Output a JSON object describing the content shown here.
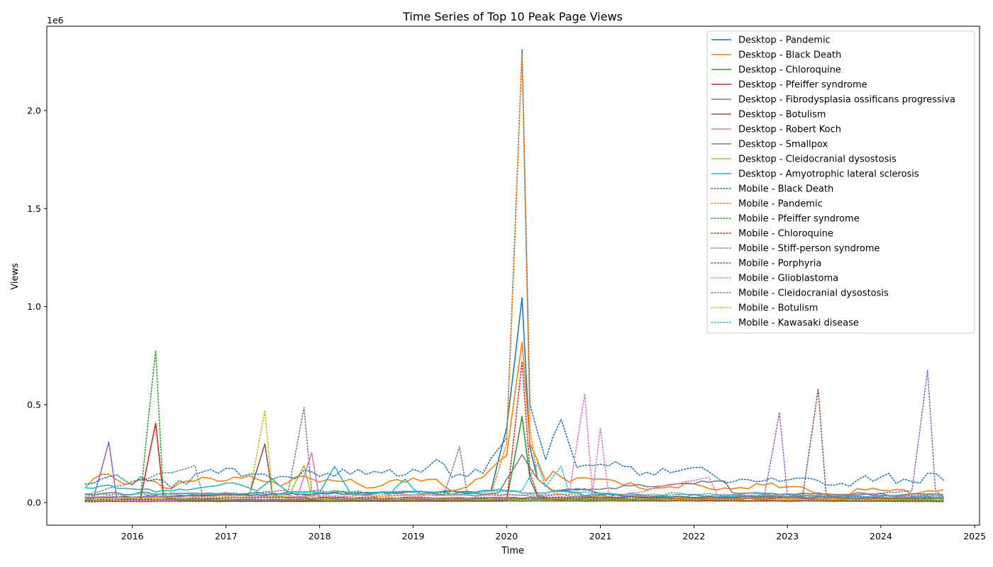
{
  "chart_data": {
    "type": "line",
    "title": "Time Series of Top 10 Peak Page Views",
    "xlabel": "Time",
    "ylabel": "Views",
    "y_offset_label": "1e6",
    "xlim": [
      "2015-02-01",
      "2025-01-20"
    ],
    "ylim": [
      -115000,
      2430000
    ],
    "x_ticks": [
      "2016",
      "2017",
      "2018",
      "2019",
      "2020",
      "2021",
      "2022",
      "2023",
      "2024",
      "2025"
    ],
    "y_ticks": [
      {
        "value": 0,
        "label": "0.0"
      },
      {
        "value": 500000,
        "label": "0.5"
      },
      {
        "value": 1000000,
        "label": "1.0"
      },
      {
        "value": 1500000,
        "label": "1.5"
      },
      {
        "value": 2000000,
        "label": "2.0"
      }
    ],
    "grid": false,
    "legend_position": "top-right",
    "series": [
      {
        "name": "Desktop - Pandemic",
        "color": "#1f77b4",
        "style": "solid",
        "base": 30000,
        "points": [
          [
            "2015-07-01",
            25000
          ],
          [
            "2019-11-01",
            60000
          ],
          [
            "2020-01-01",
            380000
          ],
          [
            "2020-03-01",
            1045000
          ],
          [
            "2020-04-01",
            280000
          ],
          [
            "2020-05-01",
            120000
          ],
          [
            "2020-07-01",
            60000
          ],
          [
            "2020-11-01",
            70000
          ],
          [
            "2021-01-01",
            45000
          ],
          [
            "2021-06-01",
            30000
          ],
          [
            "2024-09-01",
            25000
          ]
        ]
      },
      {
        "name": "Desktop - Black Death",
        "color": "#ff7f0e",
        "style": "solid",
        "base": 90000,
        "points": [
          [
            "2015-07-01",
            75000
          ],
          [
            "2015-08-01",
            120000
          ],
          [
            "2015-10-01",
            145000
          ],
          [
            "2015-12-01",
            95000
          ],
          [
            "2016-02-01",
            120000
          ],
          [
            "2016-06-01",
            70000
          ],
          [
            "2016-09-01",
            110000
          ],
          [
            "2017-02-01",
            130000
          ],
          [
            "2017-05-01",
            120000
          ],
          [
            "2017-08-01",
            85000
          ],
          [
            "2017-11-01",
            135000
          ],
          [
            "2018-01-01",
            105000
          ],
          [
            "2018-05-01",
            120000
          ],
          [
            "2018-07-01",
            75000
          ],
          [
            "2018-10-01",
            110000
          ],
          [
            "2019-04-01",
            120000
          ],
          [
            "2019-06-01",
            60000
          ],
          [
            "2019-10-01",
            130000
          ],
          [
            "2019-12-01",
            210000
          ],
          [
            "2020-01-01",
            240000
          ],
          [
            "2020-03-01",
            820000
          ],
          [
            "2020-04-01",
            300000
          ],
          [
            "2020-06-01",
            110000
          ],
          [
            "2020-07-01",
            160000
          ],
          [
            "2020-09-01",
            105000
          ],
          [
            "2020-12-01",
            120000
          ],
          [
            "2021-03-01",
            110000
          ],
          [
            "2021-06-01",
            75000
          ],
          [
            "2022-01-01",
            95000
          ],
          [
            "2022-04-01",
            65000
          ],
          [
            "2022-10-01",
            90000
          ],
          [
            "2023-03-01",
            80000
          ],
          [
            "2023-06-01",
            45000
          ],
          [
            "2023-11-01",
            65000
          ],
          [
            "2024-04-01",
            65000
          ],
          [
            "2024-06-01",
            50000
          ],
          [
            "2024-09-01",
            65000
          ]
        ]
      },
      {
        "name": "Desktop - Chloroquine",
        "color": "#2ca02c",
        "style": "solid",
        "base": 10000,
        "points": [
          [
            "2015-07-01",
            10000
          ],
          [
            "2020-01-01",
            12000
          ],
          [
            "2020-03-01",
            440000
          ],
          [
            "2020-04-01",
            120000
          ],
          [
            "2020-05-01",
            30000
          ],
          [
            "2020-07-01",
            15000
          ],
          [
            "2024-09-01",
            10000
          ]
        ]
      },
      {
        "name": "Desktop - Pfeiffer syndrome",
        "color": "#d62728",
        "style": "solid",
        "base": 8000,
        "points": [
          [
            "2015-07-01",
            8000
          ],
          [
            "2016-02-01",
            10000
          ],
          [
            "2016-04-01",
            405000
          ],
          [
            "2016-05-01",
            30000
          ],
          [
            "2016-07-01",
            8000
          ],
          [
            "2024-09-01",
            8000
          ]
        ]
      },
      {
        "name": "Desktop - Fibrodysplasia ossificans progressiva",
        "color": "#9467bd",
        "style": "solid",
        "base": 15000,
        "points": [
          [
            "2015-07-01",
            15000
          ],
          [
            "2015-08-01",
            20000
          ],
          [
            "2015-10-01",
            310000
          ],
          [
            "2015-11-01",
            20000
          ],
          [
            "2016-01-01",
            15000
          ],
          [
            "2024-09-01",
            12000
          ]
        ]
      },
      {
        "name": "Desktop - Botulism",
        "color": "#8c564b",
        "style": "solid",
        "base": 25000,
        "points": [
          [
            "2015-07-01",
            25000
          ],
          [
            "2017-04-01",
            40000
          ],
          [
            "2017-06-01",
            300000
          ],
          [
            "2017-07-01",
            40000
          ],
          [
            "2017-09-01",
            25000
          ],
          [
            "2024-09-01",
            20000
          ]
        ]
      },
      {
        "name": "Desktop - Robert Koch",
        "color": "#e377c2",
        "style": "solid",
        "base": 8000,
        "points": [
          [
            "2015-07-01",
            8000
          ],
          [
            "2017-10-01",
            10000
          ],
          [
            "2017-12-01",
            255000
          ],
          [
            "2018-01-01",
            15000
          ],
          [
            "2018-03-01",
            8000
          ],
          [
            "2024-09-01",
            8000
          ]
        ]
      },
      {
        "name": "Desktop - Smallpox",
        "color": "#7f7f7f",
        "style": "solid",
        "base": 45000,
        "points": [
          [
            "2015-07-01",
            45000
          ],
          [
            "2019-12-01",
            50000
          ],
          [
            "2020-03-01",
            245000
          ],
          [
            "2020-05-01",
            120000
          ],
          [
            "2020-07-01",
            60000
          ],
          [
            "2022-05-01",
            110000
          ],
          [
            "2022-06-01",
            50000
          ],
          [
            "2024-09-01",
            40000
          ]
        ]
      },
      {
        "name": "Desktop - Cleidocranial dysostosis",
        "color": "#bcbd22",
        "style": "solid",
        "base": 10000,
        "points": [
          [
            "2015-07-01",
            10000
          ],
          [
            "2017-09-01",
            30000
          ],
          [
            "2017-11-01",
            190000
          ],
          [
            "2017-12-01",
            30000
          ],
          [
            "2018-02-01",
            10000
          ],
          [
            "2024-09-01",
            8000
          ]
        ]
      },
      {
        "name": "Desktop - Amyotrophic lateral sclerosis",
        "color": "#17becf",
        "style": "solid",
        "base": 60000,
        "points": [
          [
            "2015-07-01",
            75000
          ],
          [
            "2015-10-01",
            90000
          ],
          [
            "2016-01-01",
            70000
          ],
          [
            "2016-06-01",
            60000
          ],
          [
            "2017-02-01",
            100000
          ],
          [
            "2017-05-01",
            60000
          ],
          [
            "2017-07-01",
            120000
          ],
          [
            "2017-09-01",
            55000
          ],
          [
            "2018-01-01",
            50000
          ],
          [
            "2018-03-01",
            185000
          ],
          [
            "2018-05-01",
            50000
          ],
          [
            "2018-10-01",
            40000
          ],
          [
            "2018-12-01",
            120000
          ],
          [
            "2019-02-01",
            40000
          ],
          [
            "2020-01-01",
            60000
          ],
          [
            "2021-06-01",
            35000
          ],
          [
            "2022-06-01",
            30000
          ],
          [
            "2024-09-01",
            25000
          ]
        ]
      },
      {
        "name": "Mobile - Black Death",
        "color": "#1f77b4",
        "style": "dotted",
        "base": 150000,
        "points": [
          [
            "2015-07-01",
            95000
          ],
          [
            "2015-09-01",
            120000
          ],
          [
            "2016-03-01",
            110000
          ],
          [
            "2016-08-01",
            95000
          ],
          [
            "2016-11-01",
            170000
          ],
          [
            "2017-06-01",
            145000
          ],
          [
            "2018-02-01",
            150000
          ],
          [
            "2018-06-01",
            170000
          ],
          [
            "2019-02-01",
            155000
          ],
          [
            "2019-04-01",
            220000
          ],
          [
            "2019-06-01",
            130000
          ],
          [
            "2019-10-01",
            150000
          ],
          [
            "2019-12-01",
            275000
          ],
          [
            "2020-01-01",
            330000
          ],
          [
            "2020-03-01",
            2310000
          ],
          [
            "2020-04-01",
            500000
          ],
          [
            "2020-06-01",
            220000
          ],
          [
            "2020-08-01",
            425000
          ],
          [
            "2020-10-01",
            180000
          ],
          [
            "2021-01-01",
            195000
          ],
          [
            "2021-04-01",
            185000
          ],
          [
            "2021-06-01",
            140000
          ],
          [
            "2021-09-01",
            175000
          ],
          [
            "2022-02-01",
            180000
          ],
          [
            "2022-06-01",
            105000
          ],
          [
            "2023-01-01",
            115000
          ],
          [
            "2023-06-01",
            90000
          ],
          [
            "2024-01-01",
            130000
          ],
          [
            "2024-06-01",
            100000
          ],
          [
            "2024-08-01",
            150000
          ],
          [
            "2024-09-01",
            115000
          ]
        ]
      },
      {
        "name": "Mobile - Pandemic",
        "color": "#ff7f0e",
        "style": "dotted",
        "base": 25000,
        "points": [
          [
            "2015-07-01",
            20000
          ],
          [
            "2019-11-01",
            40000
          ],
          [
            "2020-01-01",
            300000
          ],
          [
            "2020-03-01",
            2290000
          ],
          [
            "2020-04-01",
            380000
          ],
          [
            "2020-05-01",
            120000
          ],
          [
            "2020-07-01",
            50000
          ],
          [
            "2021-01-01",
            30000
          ],
          [
            "2024-09-01",
            20000
          ]
        ]
      },
      {
        "name": "Mobile - Pfeiffer syndrome",
        "color": "#2ca02c",
        "style": "dotted",
        "base": 10000,
        "points": [
          [
            "2015-07-01",
            10000
          ],
          [
            "2016-02-01",
            15000
          ],
          [
            "2016-04-01",
            775000
          ],
          [
            "2016-05-01",
            40000
          ],
          [
            "2016-07-01",
            10000
          ],
          [
            "2024-09-01",
            10000
          ]
        ]
      },
      {
        "name": "Mobile - Chloroquine",
        "color": "#d62728",
        "style": "dotted",
        "base": 5000,
        "points": [
          [
            "2015-07-01",
            5000
          ],
          [
            "2020-01-01",
            8000
          ],
          [
            "2020-03-01",
            720000
          ],
          [
            "2020-04-01",
            150000
          ],
          [
            "2020-05-01",
            40000
          ],
          [
            "2020-07-01",
            15000
          ],
          [
            "2024-09-01",
            5000
          ]
        ]
      },
      {
        "name": "Mobile - Stiff-person syndrome",
        "color": "#9467bd",
        "style": "dotted",
        "base": 15000,
        "points": [
          [
            "2015-07-01",
            15000
          ],
          [
            "2022-10-01",
            20000
          ],
          [
            "2022-12-01",
            460000
          ],
          [
            "2023-01-01",
            40000
          ],
          [
            "2023-03-01",
            20000
          ],
          [
            "2024-05-01",
            60000
          ],
          [
            "2024-07-01",
            675000
          ],
          [
            "2024-08-01",
            60000
          ],
          [
            "2024-09-01",
            30000
          ]
        ]
      },
      {
        "name": "Mobile - Porphyria",
        "color": "#8c564b",
        "style": "dotted",
        "base": 20000,
        "points": [
          [
            "2015-07-01",
            20000
          ],
          [
            "2023-03-01",
            30000
          ],
          [
            "2023-05-01",
            580000
          ],
          [
            "2023-06-01",
            40000
          ],
          [
            "2023-08-01",
            25000
          ],
          [
            "2024-09-01",
            20000
          ]
        ]
      },
      {
        "name": "Mobile - Glioblastoma",
        "color": "#e377c2",
        "style": "dotted",
        "base": 30000,
        "points": [
          [
            "2015-07-01",
            30000
          ],
          [
            "2020-09-01",
            40000
          ],
          [
            "2020-11-01",
            555000
          ],
          [
            "2020-12-01",
            50000
          ],
          [
            "2021-01-01",
            380000
          ],
          [
            "2021-02-01",
            50000
          ],
          [
            "2021-04-01",
            40000
          ],
          [
            "2022-03-01",
            130000
          ],
          [
            "2022-04-01",
            40000
          ],
          [
            "2024-09-01",
            30000
          ]
        ]
      },
      {
        "name": "Mobile - Cleidocranial dysostosis",
        "color": "#7f7f7f",
        "style": "dotted",
        "base": 40000,
        "points": [
          [
            "2015-07-01",
            40000
          ],
          [
            "2016-09-01",
            190000
          ],
          [
            "2016-10-01",
            40000
          ],
          [
            "2017-09-01",
            60000
          ],
          [
            "2017-11-01",
            485000
          ],
          [
            "2017-12-01",
            60000
          ],
          [
            "2019-05-01",
            40000
          ],
          [
            "2019-07-01",
            285000
          ],
          [
            "2019-08-01",
            40000
          ],
          [
            "2024-09-01",
            35000
          ]
        ]
      },
      {
        "name": "Mobile - Botulism",
        "color": "#bcbd22",
        "style": "dotted",
        "base": 20000,
        "points": [
          [
            "2015-07-01",
            20000
          ],
          [
            "2017-04-01",
            30000
          ],
          [
            "2017-06-01",
            470000
          ],
          [
            "2017-07-01",
            40000
          ],
          [
            "2017-09-01",
            20000
          ],
          [
            "2024-09-01",
            15000
          ]
        ]
      },
      {
        "name": "Mobile - Kawasaki disease",
        "color": "#17becf",
        "style": "dotted",
        "base": 40000,
        "points": [
          [
            "2015-07-01",
            40000
          ],
          [
            "2020-03-01",
            60000
          ],
          [
            "2020-05-01",
            200000
          ],
          [
            "2020-06-01",
            80000
          ],
          [
            "2020-08-01",
            185000
          ],
          [
            "2020-09-01",
            50000
          ],
          [
            "2024-09-01",
            30000
          ]
        ]
      }
    ]
  }
}
